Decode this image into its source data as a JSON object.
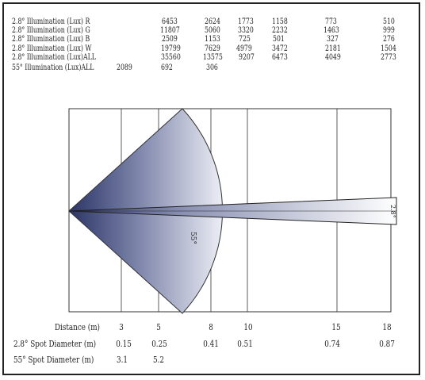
{
  "table": {
    "rows": [
      {
        "label": "2.8° Illumination (Lux) R",
        "values": [
          "6453",
          "2624",
          "1773",
          "1158",
          "773",
          "510"
        ]
      },
      {
        "label": "2.8° Illumination (Lux) G",
        "values": [
          "11807",
          "5060",
          "3320",
          "2232",
          "1463",
          "999"
        ]
      },
      {
        "label": "2.8° Illumination (Lux) B",
        "values": [
          "2509",
          "1153",
          "725",
          "501",
          "327",
          "276"
        ]
      },
      {
        "label": "2.8° Illumination (Lux) W",
        "values": [
          "19799",
          "7629",
          "4979",
          "3472",
          "2181",
          "1504"
        ]
      },
      {
        "label": "2.8° Illumination (Lux)ALL",
        "values": [
          "35560",
          "13575",
          "9207",
          "6473",
          "4049",
          "2773"
        ]
      }
    ],
    "wide_row": {
      "label": "55° Illumination (Lux)ALL",
      "values": [
        "2089",
        "692",
        "306"
      ]
    }
  },
  "diagram": {
    "wide_beam_label": "55°",
    "narrow_beam_label": "2.8°",
    "distance_label": "Distance (m)",
    "distances": [
      "3",
      "5",
      "8",
      "10",
      "15",
      "18"
    ],
    "narrow_spot_label": "2.8° Spot Diameter (m)",
    "narrow_spot": [
      "0.15",
      "0.25",
      "0.41",
      "0.51",
      "0.74",
      "0.87"
    ],
    "wide_spot_label": "55° Spot Diameter (m)",
    "wide_spot": [
      "3.1",
      "5.2"
    ]
  },
  "colors": {
    "beam_dark": "#2b3566",
    "beam_light": "#ffffff",
    "line": "#333333"
  }
}
